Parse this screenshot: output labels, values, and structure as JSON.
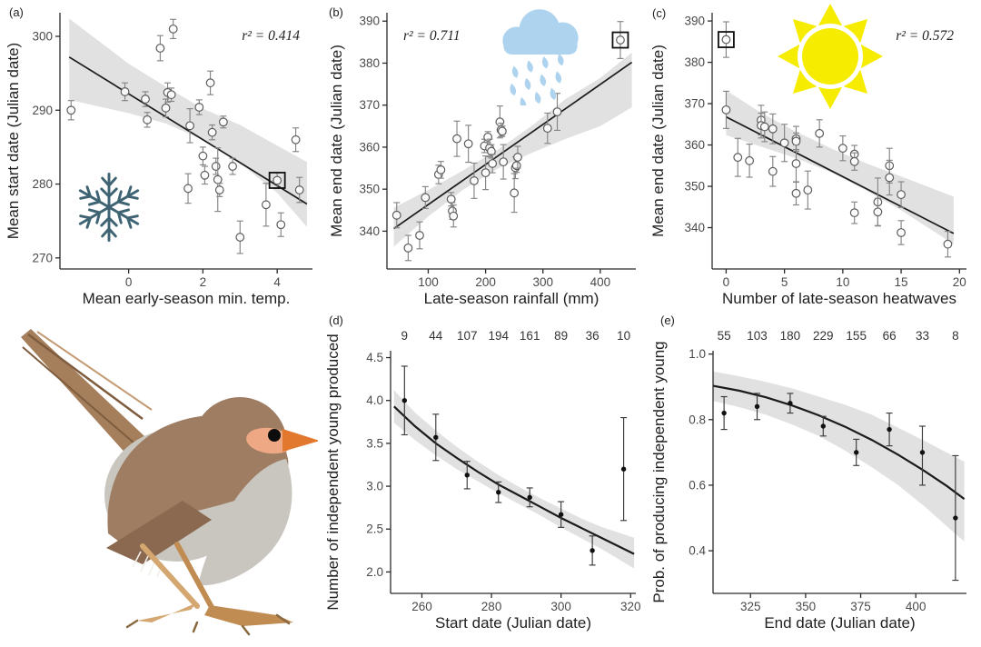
{
  "figure": {
    "background": "#ffffff",
    "description_labels": [
      "(a)",
      "(b)",
      "(c)",
      "(d)",
      "(e)"
    ]
  },
  "colors": {
    "band": "#d9d9d9",
    "fit_line": "#1b1b1b",
    "open_point_stroke": "#5c5c5c",
    "filled_point": "#111111",
    "error_bar_open": "#858585",
    "error_bar_filled": "#3a3a3a",
    "axis": "#2b2b2b",
    "tick_label": "#4a4a4a",
    "axis_title": "#1f1f1f",
    "highlight_box": "#111111"
  },
  "icons": {
    "snowflake": {
      "name": "snowflake-icon",
      "color": "#3e6372"
    },
    "rain_cloud": {
      "name": "rain-cloud-icon",
      "color": "#aed3ee"
    },
    "sun": {
      "name": "sun-icon",
      "color": "#f6ec00"
    }
  },
  "bird": {
    "name": "fairy-wren-illustration",
    "colors": {
      "body": "#9e7d63",
      "belly": "#c9c6bf",
      "tail": "#a57e5c",
      "tail_base": "#cf9d7a",
      "tail_streak_dark": "#7e5d3f",
      "tail_streak_light": "#c49a73",
      "wing": "#8a6950",
      "beak": "#e2772e",
      "face": "#efa884",
      "eye": "#0d0d0d",
      "leg_light": "#d4a770",
      "leg_dark": "#c08c52",
      "claw": "#8a6940",
      "fluff": "#f2efe9"
    }
  },
  "chart_data": [
    {
      "id": "a",
      "panel_label": "(a)",
      "type": "scatter",
      "point_style": "open",
      "r2_label": "r² = 0.414",
      "r2_pos": "right",
      "xlabel": "Mean early-season min. temp.",
      "ylabel": "Mean start date (Julian date)",
      "xlim": [
        -1.85,
        4.95
      ],
      "ylim": [
        268.5,
        303.2
      ],
      "xticks": [
        [
          0,
          "0"
        ],
        [
          2,
          "2"
        ],
        [
          4,
          "4"
        ]
      ],
      "yticks": [
        [
          270,
          "270"
        ],
        [
          280,
          "280"
        ],
        [
          290,
          "290"
        ],
        [
          300,
          "300"
        ]
      ],
      "fit": [
        [
          -1.6,
          297.2
        ],
        [
          4.8,
          277.3
        ]
      ],
      "band": [
        [
          -1.6,
          291.4,
          302.4
        ],
        [
          0,
          289.6,
          296.3
        ],
        [
          1,
          288.2,
          293.2
        ],
        [
          2,
          286.0,
          290.2
        ],
        [
          3,
          282.8,
          288.0
        ],
        [
          4,
          278.8,
          285.2
        ],
        [
          4.8,
          274.2,
          283.0
        ]
      ],
      "points": [
        [
          -1.55,
          290.0,
          1.3
        ],
        [
          -0.1,
          292.5,
          1.2
        ],
        [
          0.45,
          291.5,
          1.0
        ],
        [
          0.5,
          288.7,
          1.0
        ],
        [
          0.85,
          298.4,
          1.7
        ],
        [
          1.0,
          290.3,
          1.2
        ],
        [
          1.05,
          292.4,
          1.3
        ],
        [
          1.15,
          292.1,
          0.9
        ],
        [
          1.2,
          301.0,
          1.3
        ],
        [
          1.6,
          279.4,
          2.0
        ],
        [
          1.65,
          287.9,
          2.3
        ],
        [
          1.9,
          290.4,
          1.0
        ],
        [
          2.0,
          283.8,
          1.2
        ],
        [
          2.05,
          281.2,
          1.2
        ],
        [
          2.2,
          293.7,
          1.6
        ],
        [
          2.25,
          287.0,
          1.0
        ],
        [
          2.35,
          282.4,
          1.1
        ],
        [
          2.4,
          280.6,
          4.3
        ],
        [
          2.45,
          279.2,
          0.9
        ],
        [
          2.55,
          288.4,
          0.8
        ],
        [
          2.8,
          282.4,
          1.1
        ],
        [
          3.0,
          272.8,
          2.2
        ],
        [
          3.7,
          277.2,
          2.9
        ],
        [
          4.0,
          280.5,
          1.1,
          "hl"
        ],
        [
          4.1,
          274.5,
          1.6
        ],
        [
          4.5,
          286.0,
          1.6
        ],
        [
          4.6,
          279.2,
          1.7
        ]
      ]
    },
    {
      "id": "b",
      "panel_label": "(b)",
      "type": "scatter",
      "point_style": "open",
      "r2_label": "r² = 0.711",
      "r2_pos": "left",
      "xlabel": "Late-season rainfall (mm)",
      "ylabel": "Mean end date (Julian date)",
      "xlim": [
        28,
        462
      ],
      "ylim": [
        331,
        392
      ],
      "xticks": [
        [
          100,
          "100"
        ],
        [
          200,
          "200"
        ],
        [
          300,
          "300"
        ],
        [
          400,
          "400"
        ]
      ],
      "yticks": [
        [
          340,
          "340"
        ],
        [
          350,
          "350"
        ],
        [
          360,
          "360"
        ],
        [
          370,
          "370"
        ],
        [
          380,
          "380"
        ],
        [
          390,
          "390"
        ]
      ],
      "fit": [
        [
          40,
          340.6
        ],
        [
          455,
          380.2
        ]
      ],
      "band": [
        [
          40,
          336.3,
          345.6
        ],
        [
          100,
          343.5,
          349.8
        ],
        [
          160,
          349.8,
          354.4
        ],
        [
          220,
          354.8,
          359.3
        ],
        [
          280,
          358.6,
          365.0
        ],
        [
          340,
          362.0,
          371.5
        ],
        [
          400,
          365.0,
          376.5
        ],
        [
          455,
          369.5,
          382.5
        ]
      ],
      "points": [
        [
          45,
          343.8,
          3.0
        ],
        [
          65,
          336.0,
          3.0
        ],
        [
          85,
          339.0,
          3.2
        ],
        [
          95,
          348.0,
          2.6
        ],
        [
          118,
          353.5,
          2.2
        ],
        [
          122,
          354.6,
          2.0
        ],
        [
          140,
          347.6,
          1.6
        ],
        [
          142,
          344.8,
          2.0
        ],
        [
          144,
          343.6,
          2.6
        ],
        [
          150,
          362.0,
          4.2
        ],
        [
          170,
          360.8,
          4.4
        ],
        [
          180,
          352.0,
          4.2
        ],
        [
          198,
          360.3,
          1.6
        ],
        [
          200,
          353.9,
          4.0
        ],
        [
          204,
          362.4,
          1.3
        ],
        [
          207,
          359.8,
          2.1
        ],
        [
          210,
          359.0,
          1.6
        ],
        [
          212,
          356.1,
          2.2
        ],
        [
          225,
          366.0,
          3.8
        ],
        [
          227,
          364.1,
          1.6
        ],
        [
          229,
          363.8,
          1.2
        ],
        [
          231,
          356.5,
          4.1
        ],
        [
          250,
          349.1,
          4.6
        ],
        [
          252,
          355.1,
          2.6
        ],
        [
          254,
          355.6,
          1.6
        ],
        [
          256,
          357.6,
          2.6
        ],
        [
          308,
          364.5,
          3.6
        ],
        [
          325,
          368.4,
          4.4
        ],
        [
          435,
          385.5,
          4.4,
          "hl"
        ]
      ]
    },
    {
      "id": "c",
      "panel_label": "(c)",
      "type": "scatter",
      "point_style": "open",
      "r2_label": "r² = 0.572",
      "r2_pos": "right",
      "xlabel": "Number of late-season heatwaves",
      "ylabel": "Mean end date (Julian date)",
      "xlim": [
        -1.2,
        20.6
      ],
      "ylim": [
        330,
        392
      ],
      "xticks": [
        [
          0,
          "0"
        ],
        [
          5,
          "5"
        ],
        [
          10,
          "10"
        ],
        [
          15,
          "15"
        ],
        [
          20,
          "20"
        ]
      ],
      "yticks": [
        [
          340,
          "340"
        ],
        [
          350,
          "350"
        ],
        [
          360,
          "360"
        ],
        [
          370,
          "370"
        ],
        [
          380,
          "380"
        ],
        [
          390,
          "390"
        ]
      ],
      "fit": [
        [
          0,
          366.8
        ],
        [
          19.5,
          338.6
        ]
      ],
      "band": [
        [
          0,
          362.4,
          373.2
        ],
        [
          3,
          359.6,
          367.8
        ],
        [
          6,
          356.8,
          363.2
        ],
        [
          9,
          353.4,
          359.2
        ],
        [
          12,
          349.0,
          355.6
        ],
        [
          15,
          344.2,
          352.4
        ],
        [
          19.5,
          336.0,
          347.5
        ]
      ],
      "points": [
        [
          0,
          385.5,
          4.3,
          "hl"
        ],
        [
          0,
          368.5,
          4.5
        ],
        [
          1,
          357.0,
          4.6
        ],
        [
          2,
          356.2,
          4.0
        ],
        [
          3,
          366.0,
          3.6
        ],
        [
          3,
          364.7,
          3.0
        ],
        [
          3.3,
          364.4,
          3.6
        ],
        [
          4,
          363.9,
          3.6
        ],
        [
          4,
          353.6,
          3.6
        ],
        [
          5,
          360.5,
          4.5
        ],
        [
          6,
          361.5,
          3.0
        ],
        [
          6,
          360.9,
          2.0
        ],
        [
          6,
          355.5,
          4.5
        ],
        [
          6,
          348.3,
          2.8
        ],
        [
          7,
          349.1,
          4.6
        ],
        [
          8,
          362.8,
          3.3
        ],
        [
          10,
          359.2,
          3.0
        ],
        [
          11,
          357.8,
          2.1
        ],
        [
          11,
          356.0,
          2.1
        ],
        [
          11,
          343.6,
          2.6
        ],
        [
          13,
          346.2,
          5.8
        ],
        [
          13,
          343.8,
          3.3
        ],
        [
          14,
          355.0,
          4.2
        ],
        [
          14,
          352.1,
          4.2
        ],
        [
          15,
          348.0,
          3.1
        ],
        [
          15,
          338.8,
          2.9
        ],
        [
          19,
          336.0,
          3.1
        ]
      ]
    },
    {
      "id": "d",
      "panel_label": "(d)",
      "type": "scatter",
      "point_style": "filled",
      "line_width": 2.2,
      "xlabel": "Start date (Julian date)",
      "ylabel": "Number of independent young produced",
      "xlim": [
        251,
        321.5
      ],
      "ylim": [
        1.75,
        4.58
      ],
      "xticks": [
        [
          260,
          "260"
        ],
        [
          280,
          "280"
        ],
        [
          300,
          "300"
        ],
        [
          320,
          "320"
        ]
      ],
      "yticks": [
        [
          2,
          "2.0"
        ],
        [
          2.5,
          "2.5"
        ],
        [
          3,
          "3.0"
        ],
        [
          3.5,
          "3.5"
        ],
        [
          4,
          "4.0"
        ],
        [
          4.5,
          "4.5"
        ]
      ],
      "counts": {
        "labels": [
          "9",
          "44",
          "107",
          "194",
          "161",
          "89",
          "36",
          "10"
        ],
        "x": [
          255,
          264,
          273,
          282,
          291,
          300,
          309,
          318
        ]
      },
      "fit": [
        [
          252,
          3.93
        ],
        [
          258,
          3.7
        ],
        [
          264,
          3.5
        ],
        [
          270,
          3.33
        ],
        [
          276,
          3.17
        ],
        [
          282,
          3.02
        ],
        [
          288,
          2.89
        ],
        [
          294,
          2.76
        ],
        [
          300,
          2.63
        ],
        [
          306,
          2.51
        ],
        [
          312,
          2.39
        ],
        [
          321,
          2.21
        ]
      ],
      "band": [
        [
          252,
          3.74,
          4.12
        ],
        [
          258,
          3.54,
          3.86
        ],
        [
          264,
          3.36,
          3.65
        ],
        [
          270,
          3.2,
          3.46
        ],
        [
          276,
          3.06,
          3.29
        ],
        [
          282,
          2.92,
          3.13
        ],
        [
          288,
          2.79,
          2.99
        ],
        [
          294,
          2.66,
          2.86
        ],
        [
          300,
          2.52,
          2.74
        ],
        [
          306,
          2.39,
          2.62
        ],
        [
          312,
          2.26,
          2.52
        ],
        [
          321,
          2.04,
          2.4
        ]
      ],
      "points": [
        [
          255,
          4.0,
          0.4
        ],
        [
          264,
          3.57,
          0.27
        ],
        [
          273,
          3.13,
          0.16
        ],
        [
          282,
          2.93,
          0.12
        ],
        [
          291,
          2.87,
          0.11
        ],
        [
          300,
          2.67,
          0.15
        ],
        [
          309,
          2.25,
          0.17
        ],
        [
          318,
          3.2,
          0.6
        ]
      ]
    },
    {
      "id": "e",
      "panel_label": "(e)",
      "type": "scatter",
      "point_style": "filled",
      "line_width": 2.2,
      "xlabel": "End date (Julian date)",
      "ylabel": "Prob. of producing independent young",
      "xlim": [
        308,
        423
      ],
      "ylim": [
        0.27,
        1.01
      ],
      "xticks": [
        [
          325,
          "325"
        ],
        [
          350,
          "350"
        ],
        [
          375,
          "375"
        ],
        [
          400,
          "400"
        ]
      ],
      "yticks": [
        [
          0.4,
          "0.4"
        ],
        [
          0.6,
          "0.6"
        ],
        [
          0.8,
          "0.8"
        ],
        [
          1.0,
          "1.0"
        ]
      ],
      "counts": {
        "labels": [
          "55",
          "103",
          "180",
          "229",
          "155",
          "66",
          "33",
          "8"
        ],
        "x": [
          313,
          328,
          343,
          358,
          373,
          388,
          403,
          418
        ]
      },
      "fit": [
        [
          308,
          0.903
        ],
        [
          320,
          0.888
        ],
        [
          332,
          0.868
        ],
        [
          344,
          0.843
        ],
        [
          356,
          0.813
        ],
        [
          368,
          0.778
        ],
        [
          380,
          0.738
        ],
        [
          392,
          0.693
        ],
        [
          404,
          0.643
        ],
        [
          414,
          0.598
        ],
        [
          422,
          0.558
        ]
      ],
      "band": [
        [
          308,
          0.857,
          0.947
        ],
        [
          320,
          0.838,
          0.932
        ],
        [
          332,
          0.815,
          0.915
        ],
        [
          344,
          0.785,
          0.895
        ],
        [
          356,
          0.75,
          0.87
        ],
        [
          368,
          0.705,
          0.845
        ],
        [
          380,
          0.655,
          0.815
        ],
        [
          392,
          0.6,
          0.775
        ],
        [
          404,
          0.535,
          0.735
        ],
        [
          414,
          0.475,
          0.7
        ],
        [
          422,
          0.428,
          0.672
        ]
      ],
      "points": [
        [
          313,
          0.82,
          0.05
        ],
        [
          328,
          0.84,
          0.04
        ],
        [
          343,
          0.85,
          0.03
        ],
        [
          358,
          0.78,
          0.03
        ],
        [
          373,
          0.7,
          0.04
        ],
        [
          388,
          0.77,
          0.05
        ],
        [
          403,
          0.7,
          [
            0.1,
            0.08
          ]
        ],
        [
          418,
          0.5,
          0.19
        ]
      ]
    }
  ]
}
